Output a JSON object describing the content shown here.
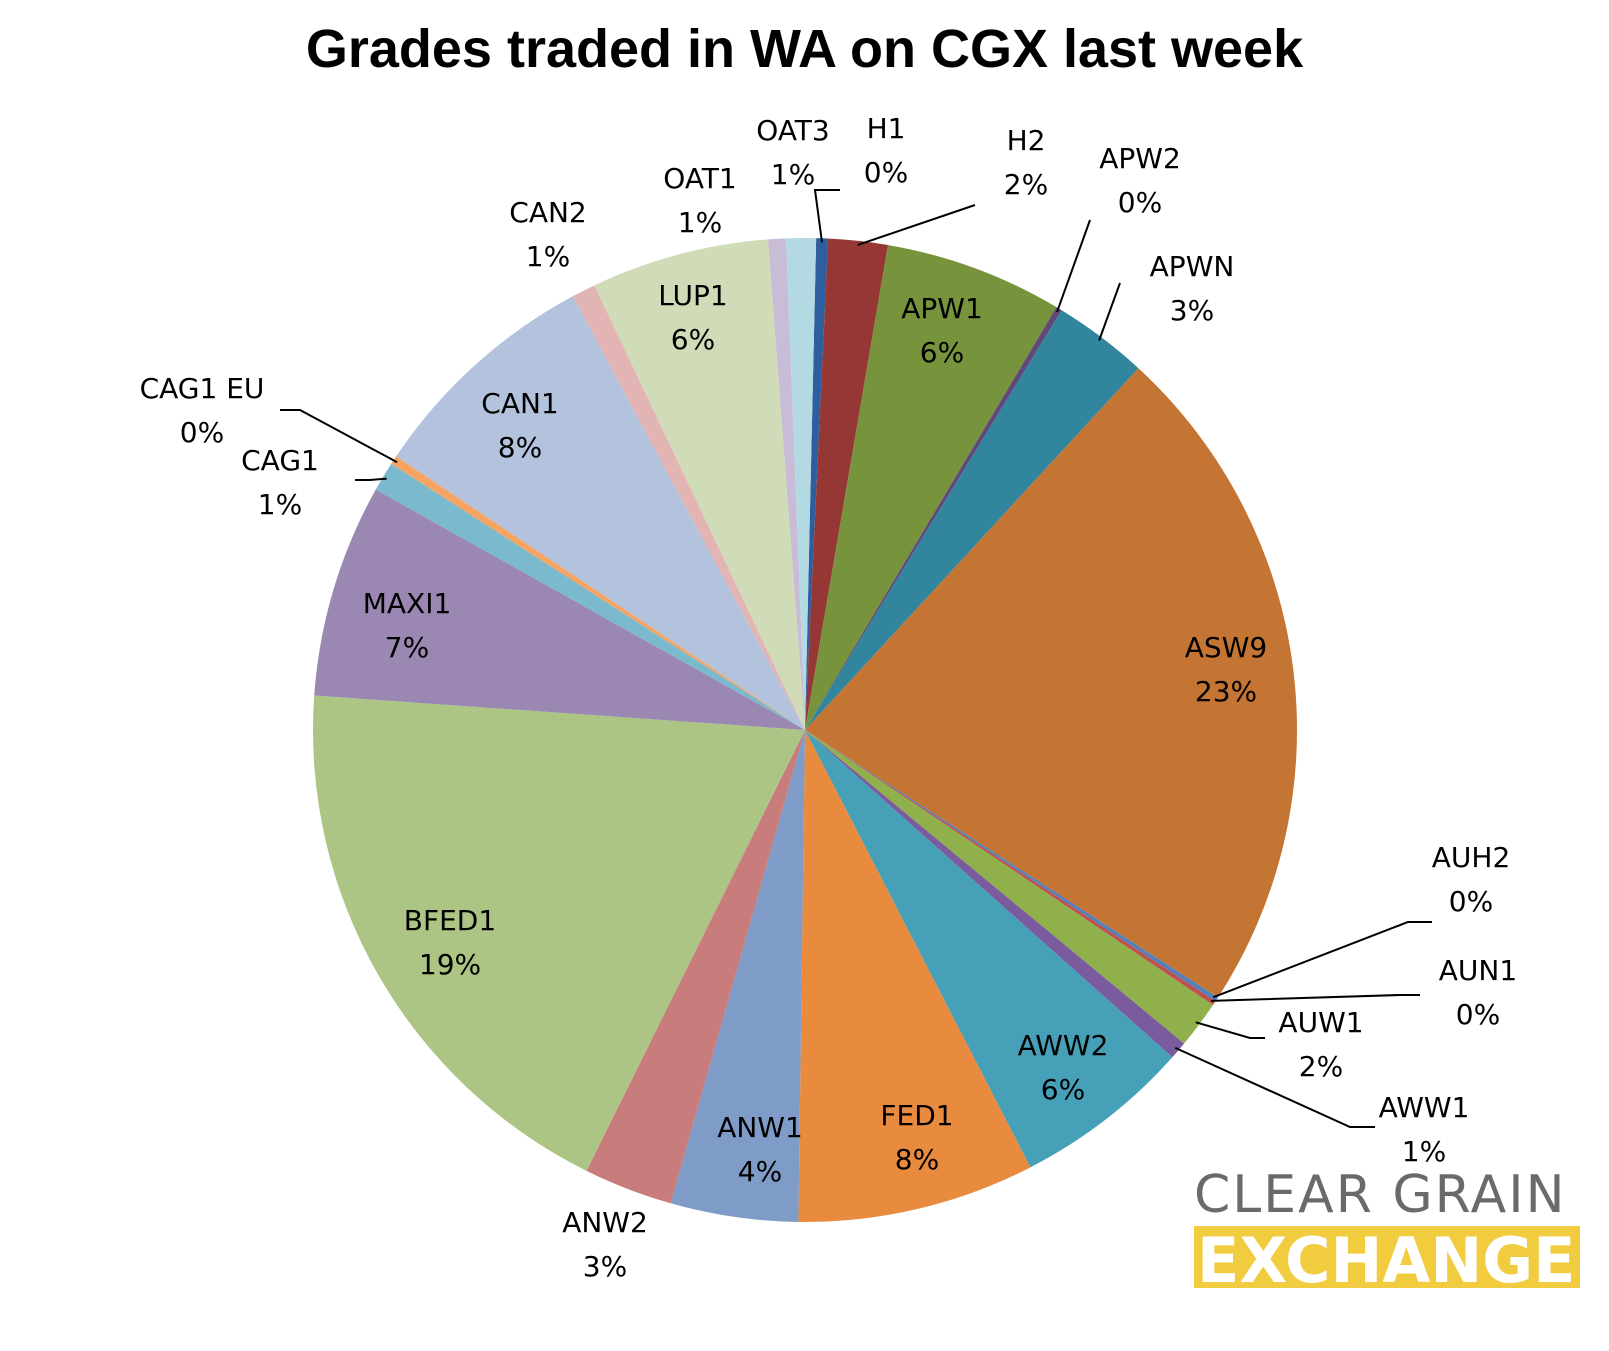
{
  "chart_data": {
    "type": "pie",
    "title": "Grades traded in WA on CGX last week",
    "start_angle_deg": 1.3,
    "slices": [
      {
        "label": "H1",
        "pct_label": "0%",
        "value": 0.4,
        "color": "#2e5e9e"
      },
      {
        "label": "H2",
        "pct_label": "2%",
        "value": 2.0,
        "color": "#953735"
      },
      {
        "label": "APW1",
        "pct_label": "6%",
        "value": 6.0,
        "color": "#77933c"
      },
      {
        "label": "APW2",
        "pct_label": "0%",
        "value": 0.2,
        "color": "#5f497a"
      },
      {
        "label": "APWN",
        "pct_label": "3%",
        "value": 3.2,
        "color": "#31859c"
      },
      {
        "label": "ASW9",
        "pct_label": "23%",
        "value": 22.9,
        "color": "#c47433"
      },
      {
        "label": "AUH2",
        "pct_label": "0%",
        "value": 0.15,
        "color": "#4f81bd"
      },
      {
        "label": "AUN1",
        "pct_label": "0%",
        "value": 0.15,
        "color": "#c0504d"
      },
      {
        "label": "AUW1",
        "pct_label": "2%",
        "value": 1.6,
        "color": "#8fb04a"
      },
      {
        "label": "AWW1",
        "pct_label": "1%",
        "value": 0.6,
        "color": "#7a5c9e"
      },
      {
        "label": "AWW2",
        "pct_label": "6%",
        "value": 6.0,
        "color": "#45a0b8"
      },
      {
        "label": "FED1",
        "pct_label": "8%",
        "value": 8.0,
        "color": "#e88b3e"
      },
      {
        "label": "ANW1",
        "pct_label": "4%",
        "value": 4.3,
        "color": "#7f9cc8"
      },
      {
        "label": "ANW2",
        "pct_label": "3%",
        "value": 3.0,
        "color": "#c87c7b"
      },
      {
        "label": "BFED1",
        "pct_label": "19%",
        "value": 19.3,
        "color": "#acc584"
      },
      {
        "label": "MAXI1",
        "pct_label": "7%",
        "value": 7.2,
        "color": "#9a88b2"
      },
      {
        "label": "CAG1",
        "pct_label": "1%",
        "value": 1.0,
        "color": "#7ab9ce"
      },
      {
        "label": "CAG1 EU",
        "pct_label": "0%",
        "value": 0.3,
        "color": "#f5a463"
      },
      {
        "label": "CAN1",
        "pct_label": "8%",
        "value": 8.0,
        "color": "#b4c3dd"
      },
      {
        "label": "CAN2",
        "pct_label": "1%",
        "value": 0.8,
        "color": "#e2b4b4"
      },
      {
        "label": "LUP1",
        "pct_label": "6%",
        "value": 6.0,
        "color": "#d0dcb8"
      },
      {
        "label": "OAT1",
        "pct_label": "1%",
        "value": 0.6,
        "color": "#c8bcd6"
      },
      {
        "label": "OAT3",
        "pct_label": "1%",
        "value": 1.0,
        "color": "#b3d9e3"
      }
    ]
  },
  "logo": {
    "line1": "CLEAR GRAIN",
    "line2": "EXCHANGE",
    "accent_color": "#f2cc3f"
  }
}
